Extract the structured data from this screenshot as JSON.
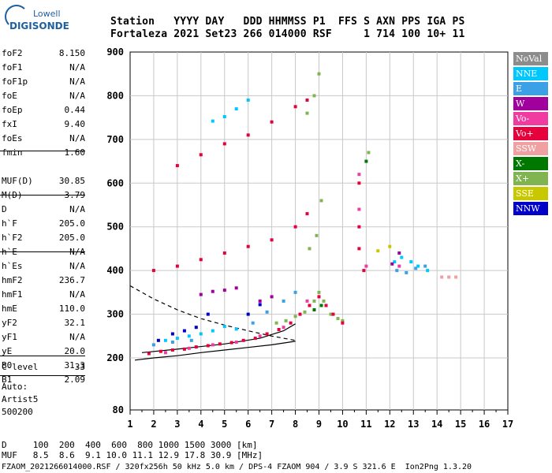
{
  "logo": {
    "top": "Lowell",
    "bottom": "DIGISONDE"
  },
  "header": {
    "line1": "Station   YYYY DAY   DDD HHMMSS P1  FFS S AXN PPS IGA PS",
    "line2": "Fortaleza 2021 Set23 266 014000 RSF     1 714 100 10+ 11"
  },
  "params_group1": [
    {
      "k": "foF2",
      "v": "8.150"
    },
    {
      "k": "foF1",
      "v": "N/A"
    },
    {
      "k": "foF1p",
      "v": "N/A"
    },
    {
      "k": "foE",
      "v": "N/A"
    },
    {
      "k": "foEp",
      "v": "0.44"
    },
    {
      "k": "fxI",
      "v": "9.40"
    },
    {
      "k": "foEs",
      "v": "N/A"
    },
    {
      "k": "fmin",
      "v": "1.60"
    }
  ],
  "params_group2": [
    {
      "k": "MUF(D)",
      "v": "30.85"
    },
    {
      "k": "M(D)",
      "v": "3.79"
    },
    {
      "k": "D",
      "v": "N/A"
    }
  ],
  "params_group3": [
    {
      "k": "h`F",
      "v": "205.0"
    },
    {
      "k": "h`F2",
      "v": "205.0"
    },
    {
      "k": "h`E",
      "v": "N/A"
    },
    {
      "k": "h`Es",
      "v": "N/A"
    }
  ],
  "params_group4": [
    {
      "k": "hmF2",
      "v": "236.7"
    },
    {
      "k": "hmF1",
      "v": "N/A"
    },
    {
      "k": "hmE",
      "v": "110.0"
    },
    {
      "k": "yF2",
      "v": "32.1"
    },
    {
      "k": "yF1",
      "v": "N/A"
    },
    {
      "k": "yE",
      "v": "20.0"
    },
    {
      "k": "B0",
      "v": "31.3"
    },
    {
      "k": "B1",
      "v": "2.09"
    }
  ],
  "params_group5": [
    {
      "k": "C-level",
      "v": "33"
    }
  ],
  "auto": {
    "line1": "Auto:",
    "line2": "Artist5",
    "line3": "500200"
  },
  "legend": [
    {
      "label": "NoVal",
      "color": "#8c8c8c"
    },
    {
      "label": "NNE",
      "color": "#00c8ff"
    },
    {
      "label": "E",
      "color": "#3ca0e6"
    },
    {
      "label": "W",
      "color": "#a0009c"
    },
    {
      "label": "Vo-",
      "color": "#f03ca0"
    },
    {
      "label": "Vo+",
      "color": "#e6003c"
    },
    {
      "label": "SSW",
      "color": "#f0a0a0"
    },
    {
      "label": "X-",
      "color": "#007800"
    },
    {
      "label": "X+",
      "color": "#80b450"
    },
    {
      "label": "SSE",
      "color": "#c8c800"
    },
    {
      "label": "NNW",
      "color": "#0000c8"
    }
  ],
  "bottom": {
    "line1": "D     100  200  400  600  800 1000 1500 3000 [km]",
    "line2": "MUF   8.5  8.6  9.1 10.0 11.1 12.9 17.8 30.9 [MHz]",
    "line3": "FZAOM_2021266014000.RSF / 320fx256h 50 kHz 5.0 km / DPS-4 FZAOM 904 / 3.9 S 321.6 E  Ion2Png 1.3.20"
  },
  "chart_data": {
    "type": "scatter",
    "xlim": [
      1,
      17
    ],
    "ylim": [
      80,
      900
    ],
    "x_ticks": [
      1,
      2,
      3,
      4,
      5,
      6,
      7,
      8,
      9,
      10,
      11,
      12,
      13,
      14,
      15,
      16,
      17
    ],
    "y_ticks": [
      80,
      200,
      300,
      400,
      500,
      600,
      700,
      800,
      900
    ],
    "grid": true,
    "legend_position": "right",
    "series": [
      {
        "name": "X+",
        "color": "#80b450",
        "points": [
          [
            7.2,
            280
          ],
          [
            7.6,
            285
          ],
          [
            8.0,
            295
          ],
          [
            8.4,
            305
          ],
          [
            8.8,
            330
          ],
          [
            9.0,
            350
          ],
          [
            9.2,
            330
          ],
          [
            9.5,
            300
          ],
          [
            9.8,
            290
          ],
          [
            8.6,
            450
          ],
          [
            8.9,
            480
          ],
          [
            9.1,
            560
          ],
          [
            8.5,
            760
          ],
          [
            8.8,
            800
          ],
          [
            9.0,
            850
          ],
          [
            10.0,
            285
          ],
          [
            11.1,
            670
          ]
        ]
      },
      {
        "name": "Vo+",
        "color": "#e6003c",
        "points": [
          [
            1.8,
            210
          ],
          [
            2.3,
            215
          ],
          [
            2.8,
            218
          ],
          [
            3.3,
            220
          ],
          [
            3.8,
            225
          ],
          [
            4.3,
            228
          ],
          [
            4.8,
            232
          ],
          [
            5.3,
            235
          ],
          [
            5.8,
            240
          ],
          [
            6.3,
            245
          ],
          [
            6.8,
            255
          ],
          [
            7.3,
            265
          ],
          [
            7.8,
            280
          ],
          [
            8.2,
            300
          ],
          [
            8.6,
            320
          ],
          [
            9.0,
            340
          ],
          [
            9.3,
            320
          ],
          [
            9.6,
            300
          ],
          [
            10.0,
            280
          ],
          [
            2.0,
            400
          ],
          [
            3.0,
            410
          ],
          [
            4.0,
            425
          ],
          [
            5.0,
            440
          ],
          [
            6.0,
            455
          ],
          [
            7.0,
            470
          ],
          [
            8.0,
            500
          ],
          [
            8.5,
            530
          ],
          [
            3.0,
            640
          ],
          [
            4.0,
            665
          ],
          [
            5.0,
            690
          ],
          [
            6.0,
            710
          ],
          [
            7.0,
            740
          ],
          [
            8.0,
            775
          ],
          [
            8.5,
            790
          ],
          [
            10.7,
            600
          ],
          [
            10.7,
            500
          ],
          [
            10.7,
            450
          ],
          [
            10.9,
            400
          ]
        ]
      },
      {
        "name": "Vo-",
        "color": "#f03ca0",
        "points": [
          [
            2.5,
            212
          ],
          [
            3.5,
            222
          ],
          [
            4.5,
            230
          ],
          [
            5.5,
            236
          ],
          [
            6.5,
            250
          ],
          [
            7.5,
            270
          ],
          [
            8.5,
            330
          ],
          [
            10.7,
            620
          ],
          [
            10.7,
            540
          ],
          [
            11.0,
            410
          ],
          [
            12.4,
            410
          ]
        ]
      },
      {
        "name": "NNE",
        "color": "#00c8ff",
        "points": [
          [
            2.5,
            240
          ],
          [
            3.0,
            245
          ],
          [
            3.5,
            250
          ],
          [
            4.0,
            255
          ],
          [
            4.5,
            262
          ],
          [
            5.0,
            272
          ],
          [
            5.5,
            266
          ],
          [
            4.5,
            742
          ],
          [
            5.0,
            752
          ],
          [
            5.5,
            770
          ],
          [
            6.0,
            790
          ],
          [
            12.2,
            420
          ],
          [
            12.5,
            430
          ],
          [
            12.9,
            420
          ],
          [
            13.2,
            410
          ],
          [
            13.6,
            400
          ]
        ]
      },
      {
        "name": "E",
        "color": "#3ca0e6",
        "points": [
          [
            2.0,
            230
          ],
          [
            2.8,
            236
          ],
          [
            3.6,
            240
          ],
          [
            6.2,
            280
          ],
          [
            6.8,
            305
          ],
          [
            7.5,
            330
          ],
          [
            8.0,
            350
          ],
          [
            12.3,
            400
          ],
          [
            12.7,
            395
          ],
          [
            13.1,
            405
          ],
          [
            13.5,
            410
          ]
        ]
      },
      {
        "name": "W",
        "color": "#a0009c",
        "points": [
          [
            4.0,
            345
          ],
          [
            4.5,
            352
          ],
          [
            5.0,
            355
          ],
          [
            5.5,
            360
          ],
          [
            6.5,
            330
          ],
          [
            7.0,
            340
          ],
          [
            12.4,
            440
          ],
          [
            12.1,
            415
          ]
        ]
      },
      {
        "name": "NNW",
        "color": "#0000c8",
        "points": [
          [
            2.2,
            240
          ],
          [
            2.8,
            255
          ],
          [
            3.3,
            262
          ],
          [
            3.8,
            270
          ],
          [
            4.3,
            300
          ],
          [
            6.0,
            300
          ],
          [
            6.5,
            322
          ]
        ]
      },
      {
        "name": "SSW",
        "color": "#f0a0a0",
        "points": [
          [
            14.2,
            385
          ],
          [
            14.5,
            385
          ],
          [
            14.8,
            385
          ]
        ]
      },
      {
        "name": "X-",
        "color": "#007800",
        "points": [
          [
            8.8,
            310
          ],
          [
            9.1,
            320
          ],
          [
            11.0,
            650
          ]
        ]
      },
      {
        "name": "SSE",
        "color": "#c8c800",
        "points": [
          [
            11.5,
            445
          ],
          [
            12.0,
            455
          ]
        ]
      }
    ],
    "traces": [
      {
        "style": "dashed",
        "color": "#000000",
        "points": [
          [
            1,
            365
          ],
          [
            2,
            335
          ],
          [
            3,
            310
          ],
          [
            4,
            290
          ],
          [
            5,
            275
          ],
          [
            6,
            262
          ],
          [
            7,
            250
          ],
          [
            8,
            240
          ]
        ]
      },
      {
        "style": "solid",
        "color": "#000000",
        "points": [
          [
            1.2,
            195
          ],
          [
            2,
            200
          ],
          [
            3,
            205
          ],
          [
            4,
            212
          ],
          [
            5,
            218
          ],
          [
            6,
            224
          ],
          [
            7,
            230
          ],
          [
            8,
            238
          ]
        ]
      },
      {
        "style": "solid",
        "color": "#000000",
        "points": [
          [
            1.5,
            212
          ],
          [
            3,
            220
          ],
          [
            5,
            232
          ],
          [
            6.5,
            245
          ],
          [
            7.5,
            262
          ],
          [
            8,
            278
          ]
        ]
      }
    ]
  }
}
